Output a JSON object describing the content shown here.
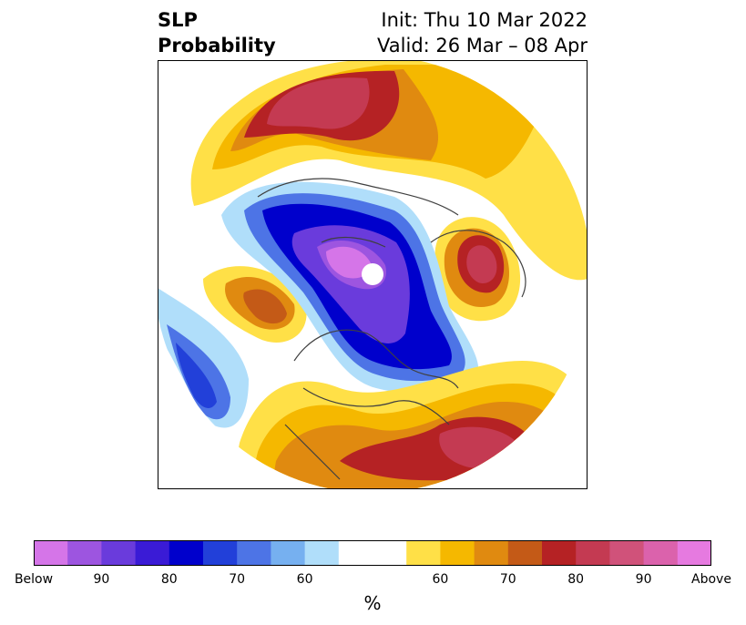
{
  "title": {
    "left_line1": "SLP",
    "left_line2": "Probability",
    "right_line1": "Init: Thu 10 Mar 2022",
    "right_line2": "Valid: 26 Mar – 08 Apr"
  },
  "colorbar": {
    "colors": [
      "#d575e8",
      "#9d55e0",
      "#6a3bdc",
      "#3a1bd6",
      "#0000cc",
      "#2240d9",
      "#4d74e6",
      "#76b0f0",
      "#b0defa",
      "#ffffff",
      "#ffffff",
      "#ffe047",
      "#f5b800",
      "#e08a10",
      "#c45a17",
      "#b52224",
      "#c43a52",
      "#d0527a",
      "#db62ac",
      "#e67ae0"
    ],
    "ticks": [
      "Below",
      "90",
      "80",
      "70",
      "60",
      "",
      "60",
      "70",
      "80",
      "90",
      "Above"
    ],
    "unit": "%"
  },
  "map": {
    "projection": "north-polar-stereographic",
    "region": "Northern Hemisphere"
  }
}
